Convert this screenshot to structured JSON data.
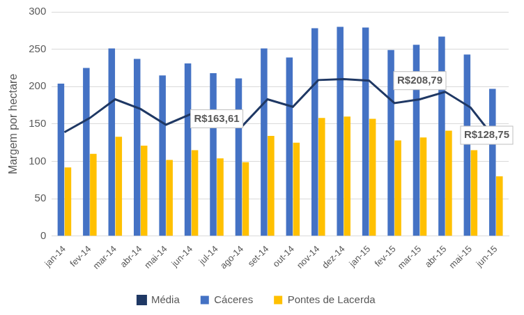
{
  "chart_data": {
    "type": "bar",
    "y_label": "Margem por hectare",
    "categories": [
      "jan-14",
      "fev-14",
      "mar-14",
      "abr-14",
      "mai-14",
      "jun-14",
      "jul-14",
      "ago-14",
      "set-14",
      "out-14",
      "nov-14",
      "dez-14",
      "jan-15",
      "fev-15",
      "mar-15",
      "abr-15",
      "mai-15",
      "jun-15"
    ],
    "series": [
      {
        "name": "Cáceres",
        "type": "bar",
        "color": "#4472c4",
        "values": [
          204,
          225,
          251,
          237,
          215,
          231,
          218,
          211,
          251,
          239,
          278,
          280,
          279,
          249,
          256,
          267,
          243,
          197
        ]
      },
      {
        "name": "Pontes de Lacerda",
        "type": "bar",
        "color": "#ffc000",
        "values": [
          92,
          110,
          133,
          121,
          102,
          115,
          104,
          99,
          134,
          125,
          158,
          160,
          157,
          128,
          132,
          141,
          115,
          80
        ]
      },
      {
        "name": "Média",
        "type": "line",
        "color": "#1f3864",
        "marker": "none",
        "line_style": "solid",
        "values": [
          139,
          158,
          183,
          170,
          149,
          163.61,
          151,
          147,
          183,
          173,
          208.79,
          210,
          208,
          178,
          183,
          193,
          172,
          128.75
        ]
      }
    ],
    "ylim": [
      0,
      300
    ],
    "yticks": [
      0,
      50,
      100,
      150,
      200,
      250,
      300
    ],
    "grid": true,
    "legend": "bottom",
    "annotations": [
      {
        "text": "R$163,61",
        "category": "jul-14",
        "y": 157
      },
      {
        "text": "R$208,79",
        "category": "mar-15",
        "y": 208
      },
      {
        "text": "R$128,75",
        "category": "jun-15",
        "y": 135
      }
    ]
  }
}
